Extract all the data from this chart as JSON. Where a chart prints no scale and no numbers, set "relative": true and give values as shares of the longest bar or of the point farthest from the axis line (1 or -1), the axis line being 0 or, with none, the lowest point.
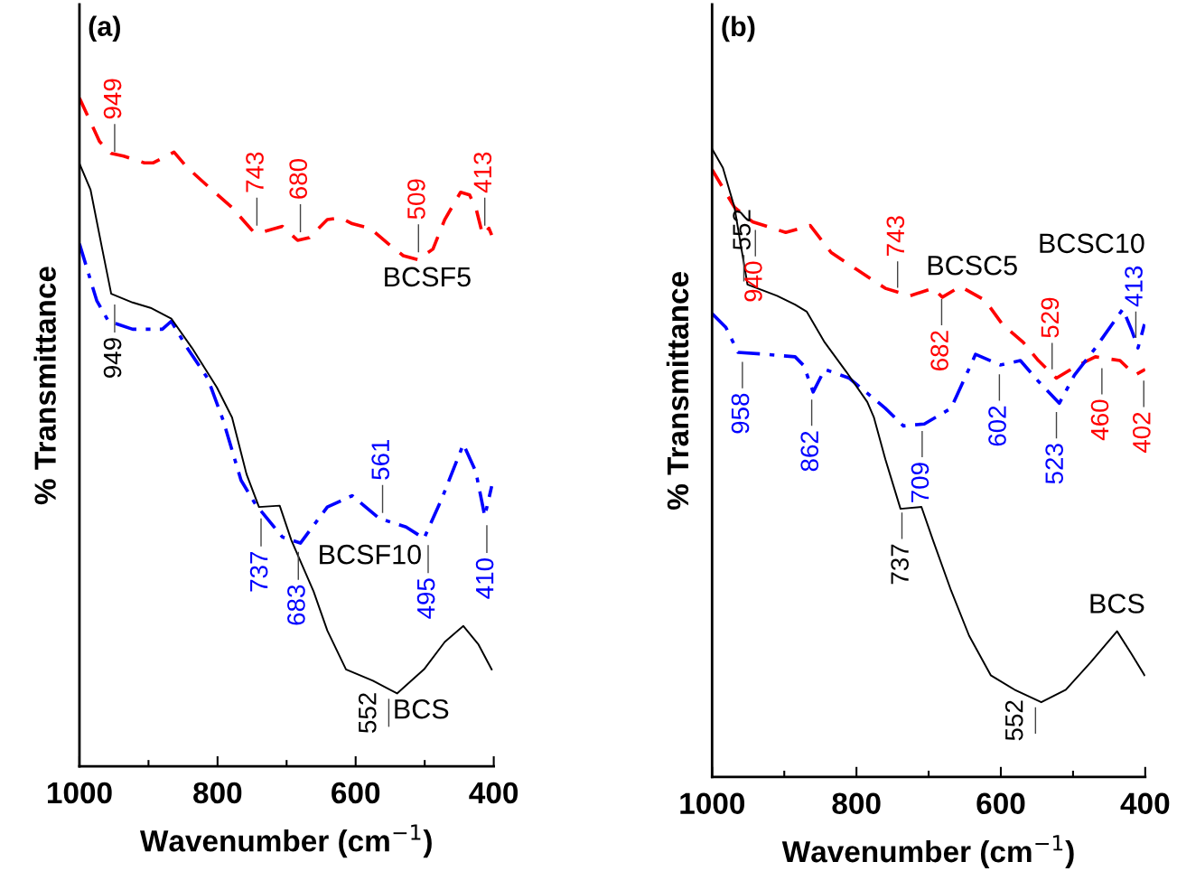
{
  "chart_data": [
    {
      "type": "line",
      "title": "(a)",
      "xlabel": "Wavenumber (cm$^{−1}$)",
      "ylabel": "% Transmittance",
      "relative": true,
      "xlim": [
        1000,
        400
      ],
      "xticks": [
        1000,
        {
          "value": 900,
          "label": null
        },
        800,
        {
          "value": 700,
          "label": null
        },
        600,
        {
          "value": 500,
          "label": null
        },
        400
      ],
      "series": [
        {
          "name": "BCSF5",
          "color": "#ff0000",
          "line_style": "dashed",
          "x": [
            1000,
            971,
            954,
            936,
            906,
            893,
            863,
            844,
            814,
            779,
            749,
            740,
            706,
            684,
            667,
            641,
            622,
            605,
            579,
            553,
            531,
            510,
            488,
            471,
            448,
            435,
            425,
            416,
            407,
            403
          ],
          "values": [
            1.0,
            0.935,
            0.917,
            0.913,
            0.903,
            0.903,
            0.919,
            0.896,
            0.868,
            0.836,
            0.801,
            0.798,
            0.808,
            0.787,
            0.791,
            0.818,
            0.821,
            0.812,
            0.805,
            0.782,
            0.764,
            0.758,
            0.774,
            0.818,
            0.859,
            0.855,
            0.832,
            0.795,
            0.805,
            0.795
          ]
        },
        {
          "name": "BCSF10",
          "color": "#0000ff",
          "line_style": "dashdot",
          "x": [
            1000,
            975,
            958,
            923,
            880,
            867,
            844,
            814,
            792,
            766,
            745,
            706,
            680,
            641,
            605,
            566,
            527,
            501,
            475,
            444,
            426,
            413,
            403
          ],
          "values": [
            0.782,
            0.697,
            0.666,
            0.654,
            0.654,
            0.666,
            0.626,
            0.58,
            0.518,
            0.428,
            0.392,
            0.343,
            0.334,
            0.388,
            0.405,
            0.371,
            0.358,
            0.341,
            0.401,
            0.482,
            0.441,
            0.374,
            0.419
          ]
        },
        {
          "name": "BCS",
          "color": "#000000",
          "line_style": "solid",
          "x": [
            1000,
            984,
            967,
            954,
            923,
            897,
            867,
            837,
            801,
            779,
            758,
            740,
            710,
            693,
            661,
            641,
            614,
            575,
            540,
            501,
            471,
            444,
            422,
            403
          ],
          "values": [
            0.902,
            0.863,
            0.774,
            0.707,
            0.694,
            0.686,
            0.67,
            0.626,
            0.567,
            0.522,
            0.437,
            0.388,
            0.39,
            0.338,
            0.262,
            0.203,
            0.145,
            0.128,
            0.109,
            0.145,
            0.186,
            0.21,
            0.182,
            0.145
          ]
        }
      ],
      "annotations": [
        {
          "text": "949",
          "x": 949,
          "y": 0.91
        },
        {
          "text": "743",
          "x": 743,
          "y": 0.8
        },
        {
          "text": "680",
          "x": 680,
          "y": 0.79
        },
        {
          "text": "509",
          "x": 509,
          "y": 0.76
        },
        {
          "text": "413",
          "x": 413,
          "y": 0.8
        },
        {
          "text": "949",
          "x": 949,
          "y": 0.7
        },
        {
          "text": "737",
          "x": 737,
          "y": 0.38
        },
        {
          "text": "683",
          "x": 683,
          "y": 0.33
        },
        {
          "text": "561",
          "x": 561,
          "y": 0.37
        },
        {
          "text": "495",
          "x": 495,
          "y": 0.34
        },
        {
          "text": "410",
          "x": 410,
          "y": 0.37
        },
        {
          "text": "552",
          "x": 552,
          "y": 0.11
        }
      ]
    },
    {
      "type": "line",
      "title": "(b)",
      "xlabel": "Wavenumber (cm$^{−1}$)",
      "ylabel": "% Transmittance",
      "relative": true,
      "xlim": [
        1000,
        400
      ],
      "xticks": [
        1000,
        {
          "value": 900,
          "label": null
        },
        800,
        {
          "value": 700,
          "label": null
        },
        600,
        {
          "value": 500,
          "label": null
        },
        400
      ],
      "series": [
        {
          "name": "BCSC5",
          "color": "#ff0000",
          "line_style": "dashed",
          "x": [
            1000,
            969,
            944,
            898,
            864,
            835,
            801,
            760,
            726,
            694,
            681,
            656,
            622,
            598,
            569,
            548,
            523,
            494,
            469,
            435,
            414,
            400
          ],
          "values": [
            0.967,
            0.907,
            0.884,
            0.867,
            0.878,
            0.835,
            0.809,
            0.778,
            0.766,
            0.778,
            0.764,
            0.781,
            0.759,
            0.721,
            0.692,
            0.663,
            0.635,
            0.655,
            0.669,
            0.663,
            0.64,
            0.649
          ]
        },
        {
          "name": "BCSC10",
          "color": "#0000ff",
          "line_style": "dashdot",
          "x": [
            1000,
            981,
            964,
            926,
            885,
            873,
            860,
            844,
            810,
            760,
            735,
            706,
            669,
            648,
            635,
            601,
            573,
            548,
            519,
            498,
            469,
            431,
            419,
            410,
            401
          ],
          "values": [
            0.738,
            0.716,
            0.676,
            0.673,
            0.669,
            0.655,
            0.613,
            0.649,
            0.635,
            0.587,
            0.559,
            0.562,
            0.587,
            0.64,
            0.673,
            0.656,
            0.663,
            0.63,
            0.595,
            0.64,
            0.683,
            0.745,
            0.712,
            0.683,
            0.721
          ]
        },
        {
          "name": "BCS",
          "color": "#000000",
          "line_style": "solid",
          "x": [
            1000,
            985,
            969,
            951,
            910,
            885,
            869,
            844,
            814,
            785,
            776,
            760,
            739,
            710,
            694,
            669,
            644,
            614,
            581,
            544,
            510,
            476,
            439,
            419,
            401
          ],
          "values": [
            1.0,
            0.97,
            0.907,
            0.784,
            0.766,
            0.752,
            0.741,
            0.692,
            0.645,
            0.597,
            0.573,
            0.506,
            0.427,
            0.43,
            0.377,
            0.297,
            0.225,
            0.162,
            0.139,
            0.119,
            0.139,
            0.182,
            0.232,
            0.196,
            0.162
          ]
        }
      ],
      "annotations": [
        {
          "text": "940",
          "x": 940,
          "y": 0.88
        },
        {
          "text": "743",
          "x": 743,
          "y": 0.77
        },
        {
          "text": "682",
          "x": 682,
          "y": 0.77
        },
        {
          "text": "529",
          "x": 529,
          "y": 0.64
        },
        {
          "text": "460",
          "x": 460,
          "y": 0.66
        },
        {
          "text": "402",
          "x": 402,
          "y": 0.64
        },
        {
          "text": "552",
          "x": 956,
          "y": 0.78
        },
        {
          "text": "958",
          "x": 958,
          "y": 0.67
        },
        {
          "text": "862",
          "x": 862,
          "y": 0.61
        },
        {
          "text": "709",
          "x": 709,
          "y": 0.56
        },
        {
          "text": "602",
          "x": 602,
          "y": 0.65
        },
        {
          "text": "523",
          "x": 523,
          "y": 0.59
        },
        {
          "text": "413",
          "x": 413,
          "y": 0.69
        },
        {
          "text": "737",
          "x": 737,
          "y": 0.43
        },
        {
          "text": "552",
          "x": 552,
          "y": 0.12
        }
      ]
    }
  ]
}
